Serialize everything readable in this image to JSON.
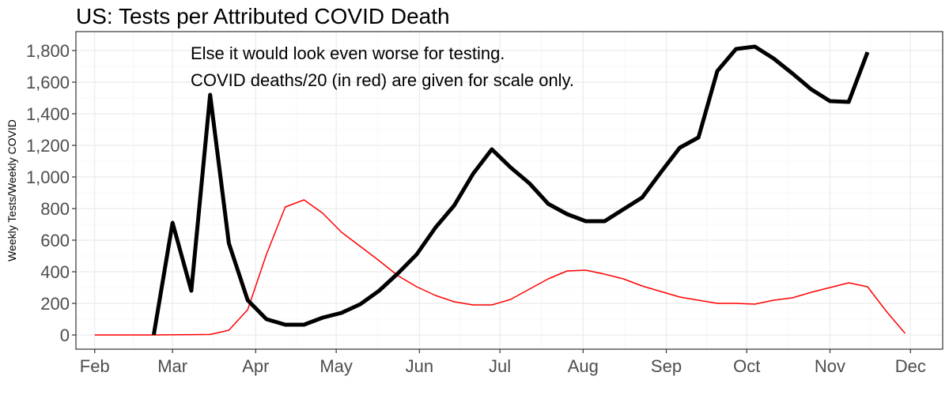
{
  "chart_data": {
    "type": "line",
    "title": "US: Tests per Attributed COVID Death",
    "ylabel": "Weekly Tests/Weekly COVID",
    "xlabel": "",
    "ylim": [
      -90,
      1920
    ],
    "y_ticks": [
      0,
      200,
      400,
      600,
      800,
      1000,
      1200,
      1400,
      1600,
      1800
    ],
    "y_tick_labels": [
      "0",
      "200",
      "400",
      "600",
      "800",
      "1,000",
      "1,200",
      "1,400",
      "1,600",
      "1,800"
    ],
    "x_ticks": [
      "2020-02-01",
      "2020-03-01",
      "2020-04-01",
      "2020-05-01",
      "2020-06-01",
      "2020-07-01",
      "2020-08-01",
      "2020-09-01",
      "2020-10-01",
      "2020-11-01",
      "2020-12-01"
    ],
    "x_tick_labels": [
      "Feb",
      "Mar",
      "Apr",
      "May",
      "Jun",
      "Jul",
      "Aug",
      "Sep",
      "Oct",
      "Nov",
      "Dec"
    ],
    "xlim": [
      "2020-01-25",
      "2020-12-13"
    ],
    "grid": true,
    "annotations": [
      "Else it would look even worse for testing.",
      "COVID deaths/20 (in red) are given for scale only."
    ],
    "series": [
      {
        "color": "#000000",
        "x": [
          "2020-02-23",
          "2020-03-01",
          "2020-03-08",
          "2020-03-15",
          "2020-03-22",
          "2020-03-29",
          "2020-04-05",
          "2020-04-12",
          "2020-04-19",
          "2020-04-26",
          "2020-05-03",
          "2020-05-10",
          "2020-05-17",
          "2020-05-24",
          "2020-05-31",
          "2020-06-07",
          "2020-06-14",
          "2020-06-21",
          "2020-06-28",
          "2020-07-05",
          "2020-07-12",
          "2020-07-19",
          "2020-07-26",
          "2020-08-02",
          "2020-08-09",
          "2020-08-16",
          "2020-08-23",
          "2020-08-30",
          "2020-09-06",
          "2020-09-13",
          "2020-09-20",
          "2020-09-27",
          "2020-10-04",
          "2020-10-11",
          "2020-10-18",
          "2020-10-25",
          "2020-11-01",
          "2020-11-08",
          "2020-11-15"
        ],
        "values": [
          0,
          710,
          280,
          1520,
          580,
          220,
          100,
          65,
          65,
          110,
          140,
          195,
          280,
          390,
          510,
          680,
          820,
          1020,
          1175,
          1060,
          960,
          830,
          765,
          720,
          720,
          795,
          870,
          1030,
          1185,
          1250,
          1670,
          1810,
          1825,
          1750,
          1655,
          1555,
          1480,
          1475,
          1790
        ]
      },
      {
        "color": "#ff0000",
        "x": [
          "2020-02-01",
          "2020-02-08",
          "2020-02-15",
          "2020-02-22",
          "2020-03-01",
          "2020-03-08",
          "2020-03-15",
          "2020-03-22",
          "2020-03-29",
          "2020-04-05",
          "2020-04-12",
          "2020-04-19",
          "2020-04-26",
          "2020-05-03",
          "2020-05-10",
          "2020-05-17",
          "2020-05-24",
          "2020-05-31",
          "2020-06-07",
          "2020-06-14",
          "2020-06-21",
          "2020-06-28",
          "2020-07-05",
          "2020-07-12",
          "2020-07-19",
          "2020-07-26",
          "2020-08-02",
          "2020-08-09",
          "2020-08-16",
          "2020-08-23",
          "2020-08-30",
          "2020-09-06",
          "2020-09-13",
          "2020-09-20",
          "2020-09-27",
          "2020-10-04",
          "2020-10-11",
          "2020-10-18",
          "2020-10-25",
          "2020-11-01",
          "2020-11-08",
          "2020-11-15",
          "2020-11-22",
          "2020-11-29"
        ],
        "values": [
          0,
          0,
          0,
          0,
          1,
          2,
          3,
          30,
          160,
          510,
          810,
          855,
          770,
          650,
          560,
          470,
          375,
          305,
          250,
          210,
          190,
          190,
          225,
          290,
          355,
          405,
          410,
          385,
          355,
          310,
          275,
          240,
          220,
          200,
          200,
          195,
          220,
          235,
          270,
          300,
          330,
          305,
          150,
          10
        ]
      }
    ]
  }
}
